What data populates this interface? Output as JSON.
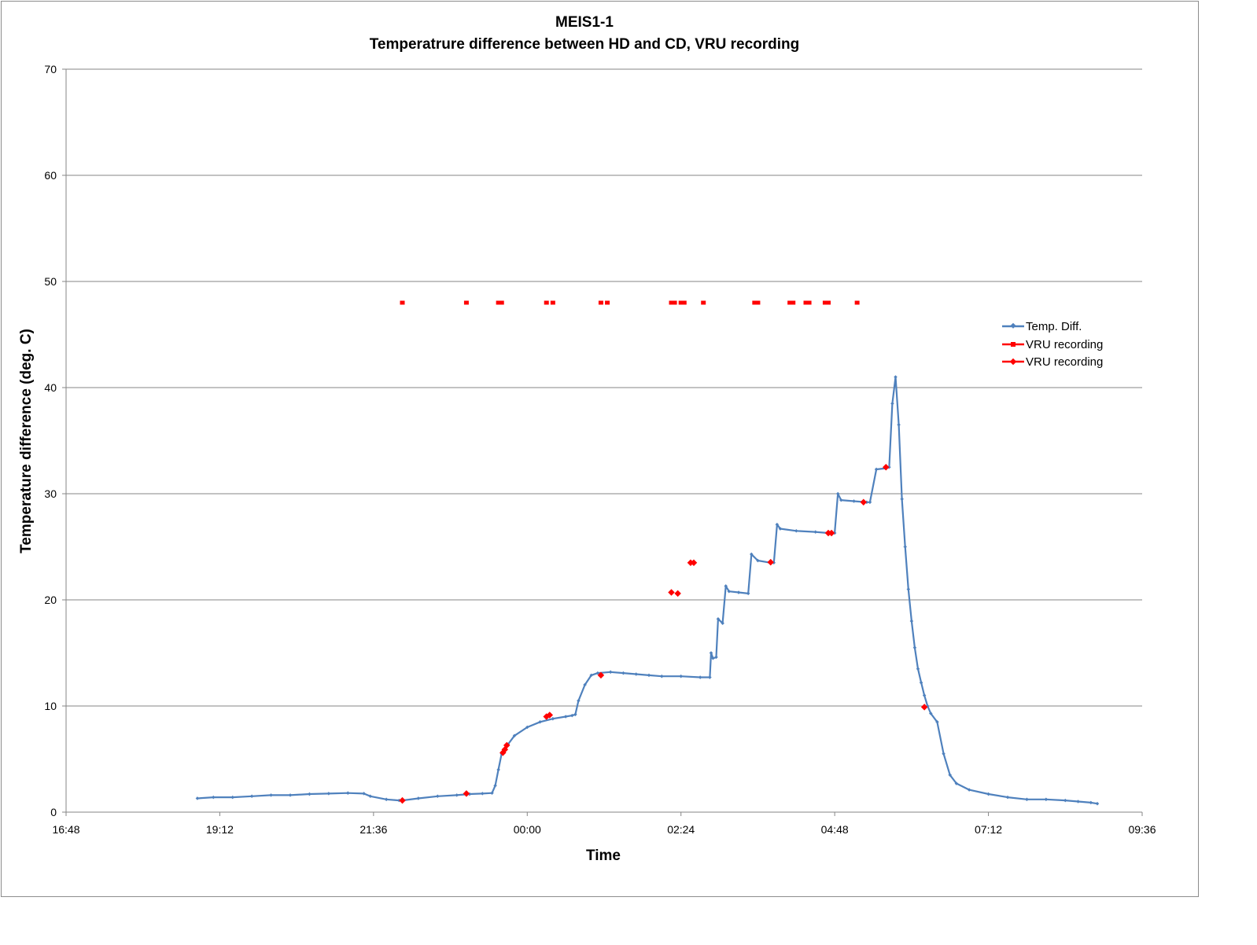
{
  "chart_data": {
    "type": "scatter",
    "title": "MEIS1-1",
    "subtitle": "Temperatrure difference between HD and CD, VRU recording",
    "xlabel": "Time",
    "ylabel": "Temperature difference (deg. C)",
    "xlim": [
      "16:48",
      "09:36"
    ],
    "xlim_hours": [
      16.8,
      33.6
    ],
    "ylim": [
      0,
      70
    ],
    "x_ticks": [
      "16:48",
      "19:12",
      "21:36",
      "00:00",
      "02:24",
      "04:48",
      "07:12",
      "09:36"
    ],
    "y_ticks": [
      "0",
      "10",
      "20",
      "30",
      "40",
      "50",
      "60",
      "70"
    ],
    "grid": "horizontal",
    "legend_position": "right",
    "series": [
      {
        "name": "Temp. Diff.",
        "color": "#4f81bd",
        "marker": "small-diamond",
        "note_x_unit": "hours",
        "points": [
          [
            18.85,
            1.3
          ],
          [
            19.1,
            1.4
          ],
          [
            19.4,
            1.4
          ],
          [
            19.7,
            1.5
          ],
          [
            20.0,
            1.6
          ],
          [
            20.3,
            1.6
          ],
          [
            20.6,
            1.7
          ],
          [
            20.9,
            1.75
          ],
          [
            21.2,
            1.8
          ],
          [
            21.45,
            1.75
          ],
          [
            21.55,
            1.5
          ],
          [
            21.8,
            1.2
          ],
          [
            22.0,
            1.1
          ],
          [
            22.05,
            1.1
          ],
          [
            22.3,
            1.3
          ],
          [
            22.6,
            1.5
          ],
          [
            22.9,
            1.6
          ],
          [
            23.1,
            1.7
          ],
          [
            23.3,
            1.75
          ],
          [
            23.45,
            1.8
          ],
          [
            23.5,
            2.5
          ],
          [
            23.55,
            4.0
          ],
          [
            23.6,
            5.5
          ],
          [
            23.7,
            6.4
          ],
          [
            23.8,
            7.2
          ],
          [
            24.0,
            8.0
          ],
          [
            24.2,
            8.5
          ],
          [
            24.4,
            8.8
          ],
          [
            24.6,
            9.0
          ],
          [
            24.7,
            9.1
          ],
          [
            24.75,
            9.2
          ],
          [
            24.8,
            10.5
          ],
          [
            24.9,
            12.0
          ],
          [
            25.0,
            12.9
          ],
          [
            25.1,
            13.1
          ],
          [
            25.3,
            13.2
          ],
          [
            25.5,
            13.1
          ],
          [
            25.7,
            13.0
          ],
          [
            25.9,
            12.9
          ],
          [
            26.1,
            12.8
          ],
          [
            26.4,
            12.8
          ],
          [
            26.7,
            12.7
          ],
          [
            26.85,
            12.7
          ],
          [
            26.87,
            15.0
          ],
          [
            26.9,
            14.5
          ],
          [
            26.95,
            14.6
          ],
          [
            26.98,
            18.2
          ],
          [
            27.05,
            17.8
          ],
          [
            27.1,
            21.3
          ],
          [
            27.15,
            20.8
          ],
          [
            27.3,
            20.7
          ],
          [
            27.45,
            20.6
          ],
          [
            27.5,
            24.3
          ],
          [
            27.6,
            23.7
          ],
          [
            27.8,
            23.5
          ],
          [
            27.85,
            23.5
          ],
          [
            27.9,
            27.1
          ],
          [
            27.95,
            26.7
          ],
          [
            28.2,
            26.5
          ],
          [
            28.5,
            26.4
          ],
          [
            28.7,
            26.3
          ],
          [
            28.8,
            26.3
          ],
          [
            28.85,
            30.0
          ],
          [
            28.9,
            29.4
          ],
          [
            29.1,
            29.3
          ],
          [
            29.3,
            29.2
          ],
          [
            29.35,
            29.2
          ],
          [
            29.45,
            32.3
          ],
          [
            29.6,
            32.4
          ],
          [
            29.65,
            32.5
          ],
          [
            29.7,
            38.5
          ],
          [
            29.75,
            41.0
          ],
          [
            29.8,
            36.5
          ],
          [
            29.85,
            29.5
          ],
          [
            29.9,
            25.0
          ],
          [
            29.95,
            21.0
          ],
          [
            30.0,
            18.0
          ],
          [
            30.05,
            15.5
          ],
          [
            30.1,
            13.5
          ],
          [
            30.15,
            12.2
          ],
          [
            30.2,
            11.0
          ],
          [
            30.25,
            10.0
          ],
          [
            30.3,
            9.3
          ],
          [
            30.4,
            8.5
          ],
          [
            30.5,
            5.5
          ],
          [
            30.6,
            3.5
          ],
          [
            30.7,
            2.7
          ],
          [
            30.9,
            2.1
          ],
          [
            31.2,
            1.7
          ],
          [
            31.5,
            1.4
          ],
          [
            31.8,
            1.2
          ],
          [
            32.1,
            1.2
          ],
          [
            32.4,
            1.1
          ],
          [
            32.6,
            1.0
          ],
          [
            32.8,
            0.9
          ],
          [
            32.9,
            0.8
          ]
        ]
      },
      {
        "name": "VRU recording",
        "color": "#ff0000",
        "marker": "square",
        "points": [
          [
            22.05,
            48
          ],
          [
            23.05,
            48
          ],
          [
            23.55,
            48
          ],
          [
            23.6,
            48
          ],
          [
            24.3,
            48
          ],
          [
            24.4,
            48
          ],
          [
            25.15,
            48
          ],
          [
            25.25,
            48
          ],
          [
            26.25,
            48
          ],
          [
            26.3,
            48
          ],
          [
            26.4,
            48
          ],
          [
            26.45,
            48
          ],
          [
            26.75,
            48
          ],
          [
            27.55,
            48
          ],
          [
            27.6,
            48
          ],
          [
            28.1,
            48
          ],
          [
            28.15,
            48
          ],
          [
            28.35,
            48
          ],
          [
            28.4,
            48
          ],
          [
            28.65,
            48
          ],
          [
            28.7,
            48
          ],
          [
            29.15,
            48
          ]
        ]
      },
      {
        "name": "VRU recording",
        "color": "#ff0000",
        "marker": "diamond",
        "points": [
          [
            22.05,
            1.1
          ],
          [
            23.05,
            1.75
          ],
          [
            23.62,
            5.6
          ],
          [
            23.65,
            5.9
          ],
          [
            23.68,
            6.3
          ],
          [
            24.3,
            9.0
          ],
          [
            24.35,
            9.15
          ],
          [
            25.15,
            12.9
          ],
          [
            26.25,
            20.7
          ],
          [
            26.35,
            20.6
          ],
          [
            26.55,
            23.5
          ],
          [
            26.6,
            23.5
          ],
          [
            27.8,
            23.55
          ],
          [
            28.7,
            26.3
          ],
          [
            28.75,
            26.3
          ],
          [
            29.25,
            29.2
          ],
          [
            29.6,
            32.5
          ],
          [
            30.2,
            9.9
          ]
        ]
      }
    ]
  }
}
